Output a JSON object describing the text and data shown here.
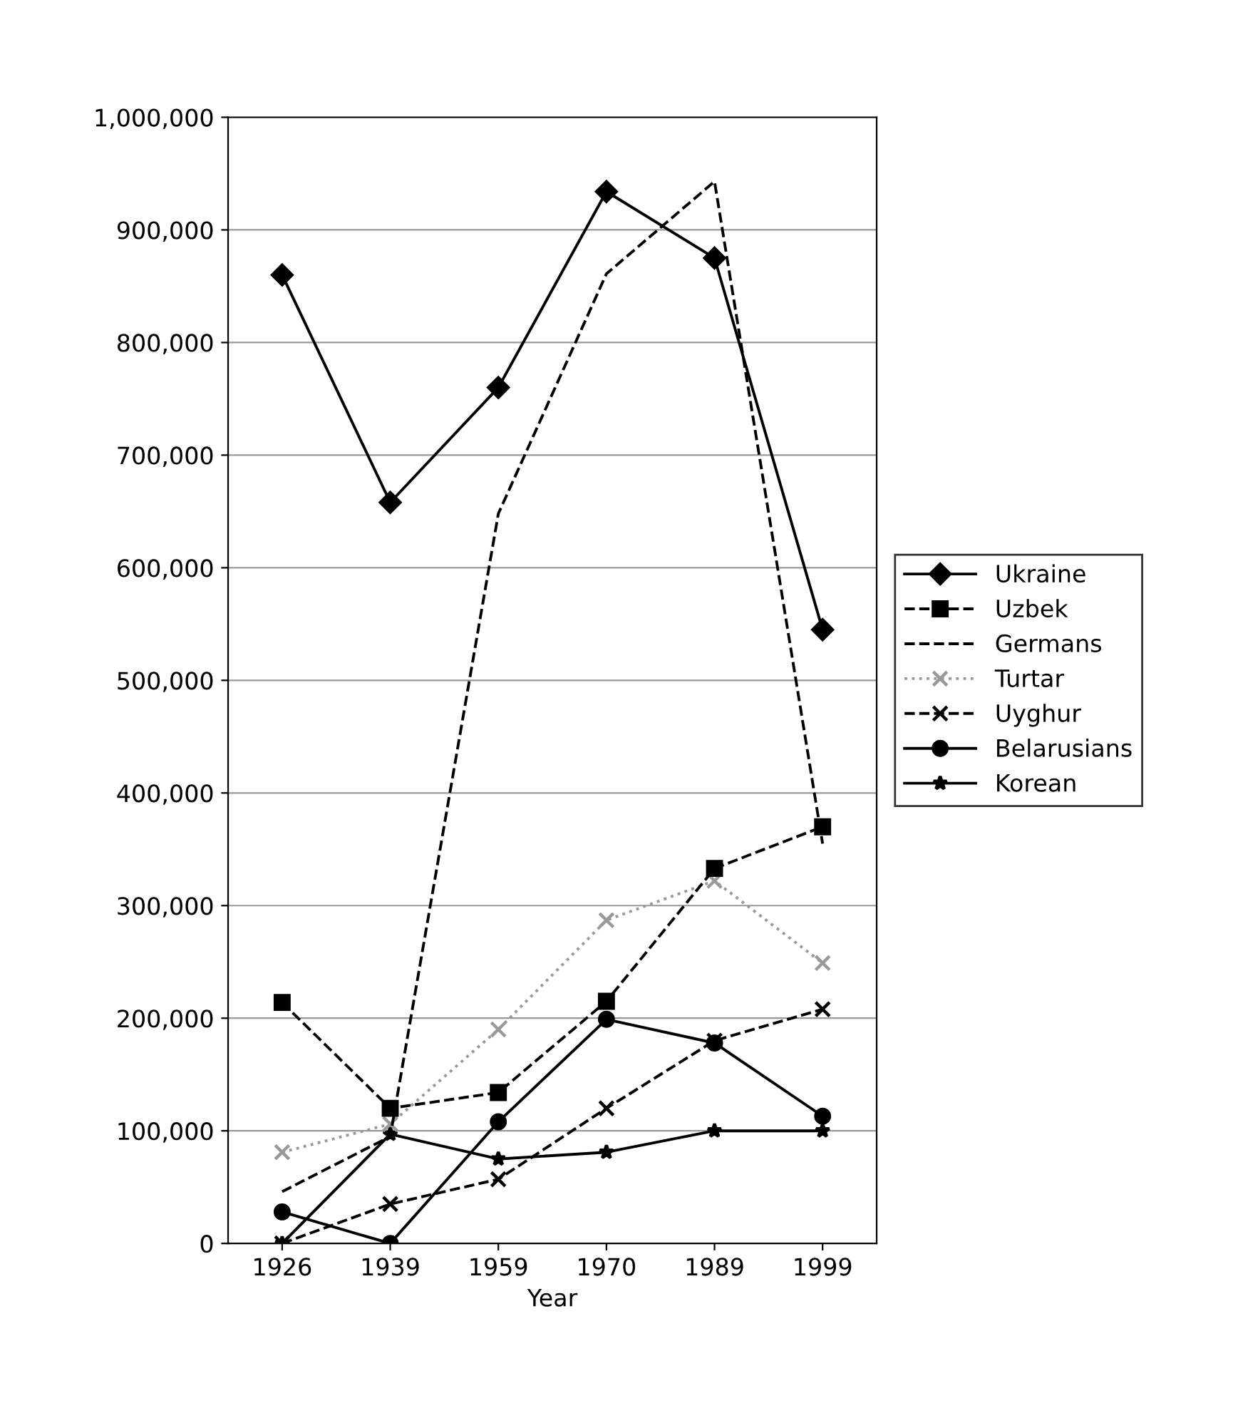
{
  "chart_data": {
    "type": "line",
    "xlabel": "Year",
    "categories": [
      "1926",
      "1939",
      "1959",
      "1970",
      "1989",
      "1999"
    ],
    "ylim": [
      0,
      1000000
    ],
    "yticks": [
      {
        "value": 0,
        "label": "0"
      },
      {
        "value": 100000,
        "label": "100,000"
      },
      {
        "value": 200000,
        "label": "200,000"
      },
      {
        "value": 300000,
        "label": "300,000"
      },
      {
        "value": 400000,
        "label": "400,000"
      },
      {
        "value": 500000,
        "label": "500,000"
      },
      {
        "value": 600000,
        "label": "600,000"
      },
      {
        "value": 700000,
        "label": "700,000"
      },
      {
        "value": 800000,
        "label": "800,000"
      },
      {
        "value": 900000,
        "label": "900,000"
      },
      {
        "value": 1000000,
        "label": "1,000,000"
      }
    ],
    "grid": "y",
    "legend": "right",
    "series": [
      {
        "name": "Ukraine",
        "color": "#000000",
        "marker": "diamond",
        "line_style": "solid",
        "values": [
          860000,
          658000,
          760000,
          934000,
          875000,
          545000
        ]
      },
      {
        "name": "Uzbek",
        "color": "#000000",
        "marker": "square",
        "line_style": "dashed",
        "values": [
          214000,
          120000,
          134000,
          215000,
          333000,
          370000
        ]
      },
      {
        "name": "Germans",
        "color": "#000000",
        "marker": "none",
        "line_style": "dashed",
        "values": [
          46000,
          95000,
          648000,
          861000,
          943000,
          355000
        ]
      },
      {
        "name": "Turtar",
        "color": "#999999",
        "marker": "cross",
        "line_style": "dotted",
        "values": [
          81000,
          106000,
          190000,
          287000,
          322000,
          249000
        ]
      },
      {
        "name": "Uyghur",
        "color": "#000000",
        "marker": "cross",
        "line_style": "dashed",
        "values": [
          0,
          35000,
          57000,
          120000,
          180000,
          208000
        ]
      },
      {
        "name": "Belarusians",
        "color": "#000000",
        "marker": "circle",
        "line_style": "solid",
        "values": [
          28000,
          0,
          108000,
          199000,
          178000,
          113000
        ]
      },
      {
        "name": "Korean",
        "color": "#000000",
        "marker": "star",
        "line_style": "solid",
        "values": [
          0,
          97000,
          75000,
          81000,
          100000,
          100000
        ]
      }
    ]
  }
}
